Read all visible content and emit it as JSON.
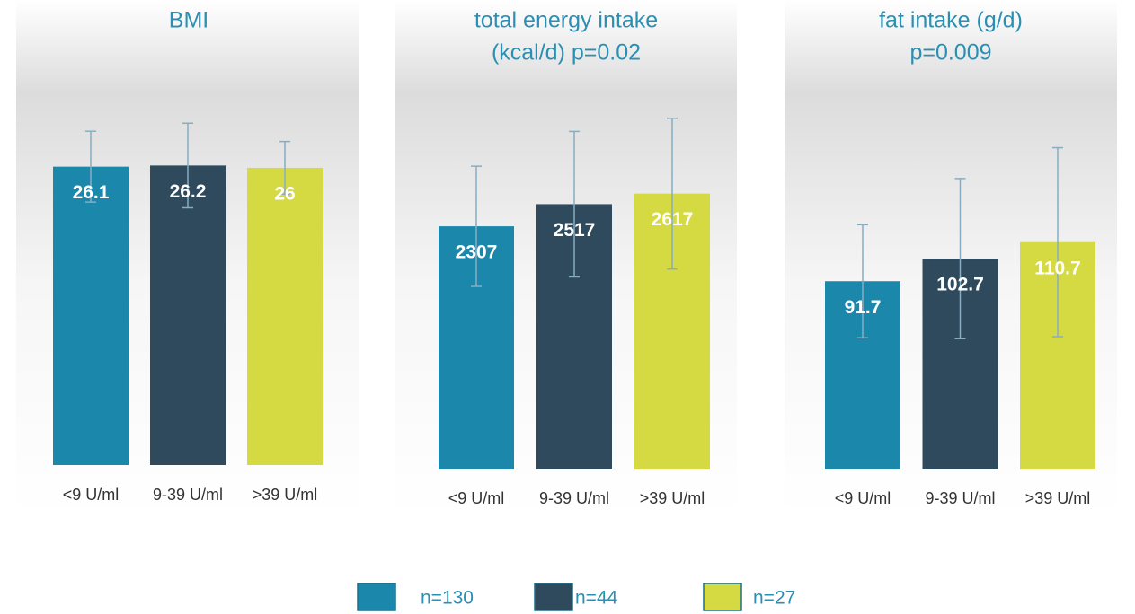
{
  "chart_data": [
    {
      "type": "bar",
      "title": [
        "BMI"
      ],
      "categories": [
        "<9 U/ml",
        "9-39 U/ml",
        ">39 U/ml"
      ],
      "values": [
        26.1,
        26.2,
        26
      ],
      "errors": [
        3.1,
        3.7,
        2.3
      ],
      "ylim": [
        0,
        30
      ]
    },
    {
      "type": "bar",
      "title": [
        "total energy intake",
        "(kcal/d) p=0.02"
      ],
      "categories": [
        "<9 U/ml",
        "9-39 U/ml",
        ">39 U/ml"
      ],
      "values": [
        2307,
        2517,
        2617
      ],
      "errors": [
        570,
        690,
        715
      ],
      "ylim": [
        0,
        3500
      ]
    },
    {
      "type": "bar",
      "title": [
        "fat intake (g/d)",
        "p=0.009"
      ],
      "categories": [
        "<9 U/ml",
        "9-39 U/ml",
        ">39 U/ml"
      ],
      "values": [
        91.7,
        102.7,
        110.7
      ],
      "errors": [
        27.5,
        39,
        46
      ],
      "ylim": [
        0,
        160
      ]
    }
  ],
  "legend": [
    {
      "label": "n=130",
      "color": "#1b88ab"
    },
    {
      "label": "n=44",
      "color": "#2e4a5c"
    },
    {
      "label": "n=27",
      "color": "#d5d942"
    }
  ]
}
